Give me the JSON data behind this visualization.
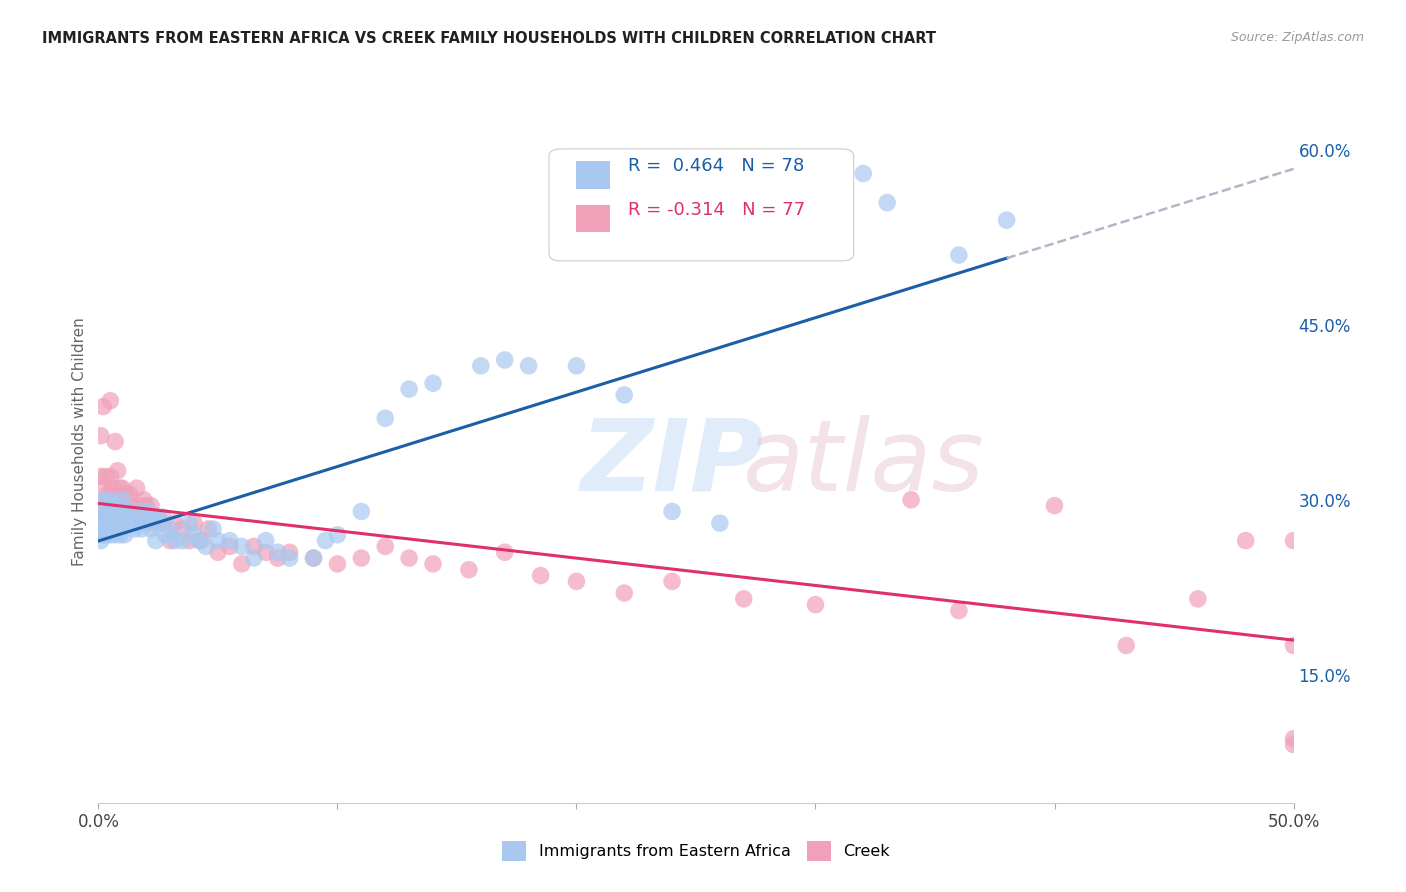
{
  "title": "IMMIGRANTS FROM EASTERN AFRICA VS CREEK FAMILY HOUSEHOLDS WITH CHILDREN CORRELATION CHART",
  "source": "Source: ZipAtlas.com",
  "ylabel": "Family Households with Children",
  "xlim": [
    0.0,
    0.5
  ],
  "ylim": [
    0.04,
    0.66
  ],
  "x_ticks": [
    0.0,
    0.1,
    0.2,
    0.3,
    0.4,
    0.5
  ],
  "x_tick_labels": [
    "0.0%",
    "",
    "",
    "",
    "",
    "50.0%"
  ],
  "y_ticks_right": [
    0.15,
    0.3,
    0.45,
    0.6
  ],
  "y_tick_labels_right": [
    "15.0%",
    "30.0%",
    "45.0%",
    "60.0%"
  ],
  "legend_label1": "Immigrants from Eastern Africa",
  "legend_label2": "Creek",
  "R1": 0.464,
  "N1": 78,
  "R2": -0.314,
  "N2": 77,
  "color_blue": "#a8c8f0",
  "color_pink": "#f0a0b8",
  "color_line_blue": "#1a5fa8",
  "color_line_pink": "#e0306a",
  "color_dashed": "#b0b8c8",
  "background_color": "#ffffff",
  "grid_color": "#d8dce8",
  "title_color": "#202020",
  "blue_scatter_x": [
    0.001,
    0.001,
    0.001,
    0.001,
    0.002,
    0.002,
    0.002,
    0.002,
    0.003,
    0.003,
    0.003,
    0.004,
    0.004,
    0.005,
    0.005,
    0.005,
    0.006,
    0.006,
    0.007,
    0.007,
    0.007,
    0.008,
    0.008,
    0.009,
    0.009,
    0.01,
    0.01,
    0.011,
    0.011,
    0.012,
    0.013,
    0.014,
    0.015,
    0.016,
    0.017,
    0.018,
    0.019,
    0.02,
    0.021,
    0.022,
    0.023,
    0.024,
    0.025,
    0.027,
    0.028,
    0.03,
    0.032,
    0.035,
    0.038,
    0.04,
    0.042,
    0.045,
    0.048,
    0.05,
    0.055,
    0.06,
    0.065,
    0.07,
    0.075,
    0.08,
    0.09,
    0.095,
    0.1,
    0.11,
    0.12,
    0.13,
    0.14,
    0.16,
    0.17,
    0.18,
    0.2,
    0.22,
    0.24,
    0.26,
    0.32,
    0.33,
    0.36,
    0.38
  ],
  "blue_scatter_y": [
    0.295,
    0.285,
    0.275,
    0.265,
    0.3,
    0.29,
    0.28,
    0.27,
    0.295,
    0.285,
    0.275,
    0.29,
    0.28,
    0.3,
    0.285,
    0.27,
    0.295,
    0.28,
    0.29,
    0.285,
    0.27,
    0.295,
    0.28,
    0.285,
    0.27,
    0.3,
    0.28,
    0.29,
    0.27,
    0.285,
    0.28,
    0.29,
    0.275,
    0.28,
    0.29,
    0.275,
    0.285,
    0.28,
    0.29,
    0.275,
    0.285,
    0.265,
    0.28,
    0.285,
    0.27,
    0.275,
    0.265,
    0.265,
    0.28,
    0.27,
    0.265,
    0.26,
    0.275,
    0.265,
    0.265,
    0.26,
    0.25,
    0.265,
    0.255,
    0.25,
    0.25,
    0.265,
    0.27,
    0.29,
    0.37,
    0.395,
    0.4,
    0.415,
    0.42,
    0.415,
    0.415,
    0.39,
    0.29,
    0.28,
    0.58,
    0.555,
    0.51,
    0.54
  ],
  "pink_scatter_x": [
    0.001,
    0.001,
    0.001,
    0.002,
    0.002,
    0.002,
    0.003,
    0.003,
    0.003,
    0.004,
    0.004,
    0.005,
    0.005,
    0.005,
    0.006,
    0.006,
    0.007,
    0.007,
    0.008,
    0.008,
    0.009,
    0.009,
    0.01,
    0.01,
    0.011,
    0.012,
    0.013,
    0.014,
    0.015,
    0.016,
    0.017,
    0.018,
    0.019,
    0.02,
    0.021,
    0.022,
    0.023,
    0.025,
    0.027,
    0.03,
    0.032,
    0.035,
    0.038,
    0.04,
    0.043,
    0.046,
    0.05,
    0.055,
    0.06,
    0.065,
    0.07,
    0.075,
    0.08,
    0.09,
    0.1,
    0.11,
    0.12,
    0.13,
    0.14,
    0.155,
    0.17,
    0.185,
    0.2,
    0.22,
    0.24,
    0.27,
    0.3,
    0.34,
    0.36,
    0.4,
    0.43,
    0.46,
    0.48,
    0.5,
    0.5,
    0.5,
    0.5
  ],
  "pink_scatter_y": [
    0.355,
    0.32,
    0.295,
    0.38,
    0.31,
    0.285,
    0.32,
    0.295,
    0.27,
    0.305,
    0.28,
    0.385,
    0.32,
    0.29,
    0.31,
    0.295,
    0.35,
    0.3,
    0.325,
    0.295,
    0.31,
    0.285,
    0.31,
    0.295,
    0.305,
    0.29,
    0.305,
    0.295,
    0.29,
    0.31,
    0.295,
    0.285,
    0.3,
    0.295,
    0.285,
    0.295,
    0.28,
    0.285,
    0.28,
    0.265,
    0.28,
    0.275,
    0.265,
    0.28,
    0.265,
    0.275,
    0.255,
    0.26,
    0.245,
    0.26,
    0.255,
    0.25,
    0.255,
    0.25,
    0.245,
    0.25,
    0.26,
    0.25,
    0.245,
    0.24,
    0.255,
    0.235,
    0.23,
    0.22,
    0.23,
    0.215,
    0.21,
    0.3,
    0.205,
    0.295,
    0.175,
    0.215,
    0.265,
    0.265,
    0.175,
    0.09,
    0.095
  ]
}
